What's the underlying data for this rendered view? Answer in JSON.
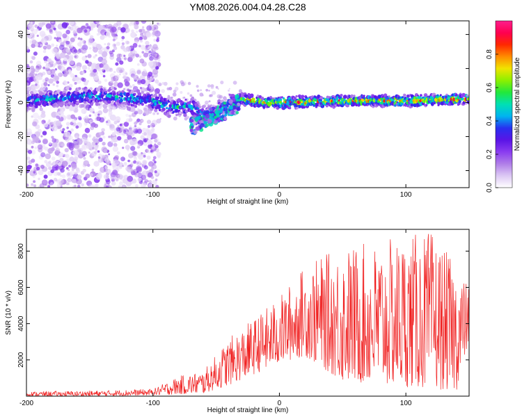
{
  "title": "YM08.2026.004.04.28.C28",
  "chart_data": [
    {
      "type": "heatmap",
      "name": "spectrogram",
      "title": "YM08.2026.004.04.28.C28",
      "xlabel": "Height of straight line (km)",
      "ylabel": "Frequency (Hz)",
      "xlim": [
        -200,
        150
      ],
      "ylim": [
        -50,
        48
      ],
      "xticks": [
        -200,
        -100,
        0,
        100
      ],
      "yticks": [
        -40,
        -20,
        0,
        20,
        40
      ],
      "signal_band": [
        {
          "x": -200,
          "y": 1
        },
        {
          "x": -150,
          "y": 4
        },
        {
          "x": -120,
          "y": 3
        },
        {
          "x": -100,
          "y": 1
        },
        {
          "x": -85,
          "y": -3
        },
        {
          "x": -70,
          "y": -2
        },
        {
          "x": -60,
          "y": -8
        },
        {
          "x": -50,
          "y": -6
        },
        {
          "x": -40,
          "y": 0
        },
        {
          "x": -30,
          "y": 2
        },
        {
          "x": -10,
          "y": 0
        },
        {
          "x": 0,
          "y": 0
        },
        {
          "x": 50,
          "y": 1
        },
        {
          "x": 100,
          "y": 1
        },
        {
          "x": 150,
          "y": 2
        }
      ],
      "colorbar": {
        "label": "Normalized spectral amplitude",
        "range": [
          0,
          1
        ],
        "ticks": [
          "0.0",
          "0.2",
          "0.4",
          "0.6",
          "0.8"
        ],
        "ticks_values": [
          0,
          0.2,
          0.4,
          0.6,
          0.8
        ],
        "colors": [
          "#ffffff",
          "#dcc8f4",
          "#b07ee8",
          "#8a3cf0",
          "#5a14e6",
          "#2830f0",
          "#00b4f0",
          "#00e0b4",
          "#22e83c",
          "#8cf000",
          "#f0e400",
          "#ff8c00",
          "#ff2800",
          "#ff0050",
          "#ff1e8c"
        ]
      }
    },
    {
      "type": "line",
      "name": "snr-trace",
      "xlabel": "Height of straight line (km)",
      "ylabel": "SNR (10 * v/v)",
      "xlim": [
        -200,
        150
      ],
      "ylim": [
        0,
        9200
      ],
      "xticks": [
        -200,
        -100,
        0,
        100
      ],
      "yticks": [
        2000,
        4000,
        6000,
        8000
      ],
      "color": "#f02020",
      "envelope": [
        {
          "x": -200,
          "low": 0,
          "high": 250
        },
        {
          "x": -150,
          "low": 0,
          "high": 300
        },
        {
          "x": -100,
          "low": 50,
          "high": 400
        },
        {
          "x": -80,
          "low": 100,
          "high": 1100
        },
        {
          "x": -60,
          "low": 150,
          "high": 1400
        },
        {
          "x": -40,
          "low": 600,
          "high": 3200
        },
        {
          "x": -20,
          "low": 1200,
          "high": 4300
        },
        {
          "x": 0,
          "low": 1800,
          "high": 5500
        },
        {
          "x": 20,
          "low": 2200,
          "high": 7200
        },
        {
          "x": 50,
          "low": 800,
          "high": 8300
        },
        {
          "x": 80,
          "low": 600,
          "high": 8500
        },
        {
          "x": 100,
          "low": 500,
          "high": 8900
        },
        {
          "x": 120,
          "low": 400,
          "high": 9100
        },
        {
          "x": 140,
          "low": 300,
          "high": 7200
        },
        {
          "x": 150,
          "low": 3000,
          "high": 6000
        }
      ]
    }
  ]
}
